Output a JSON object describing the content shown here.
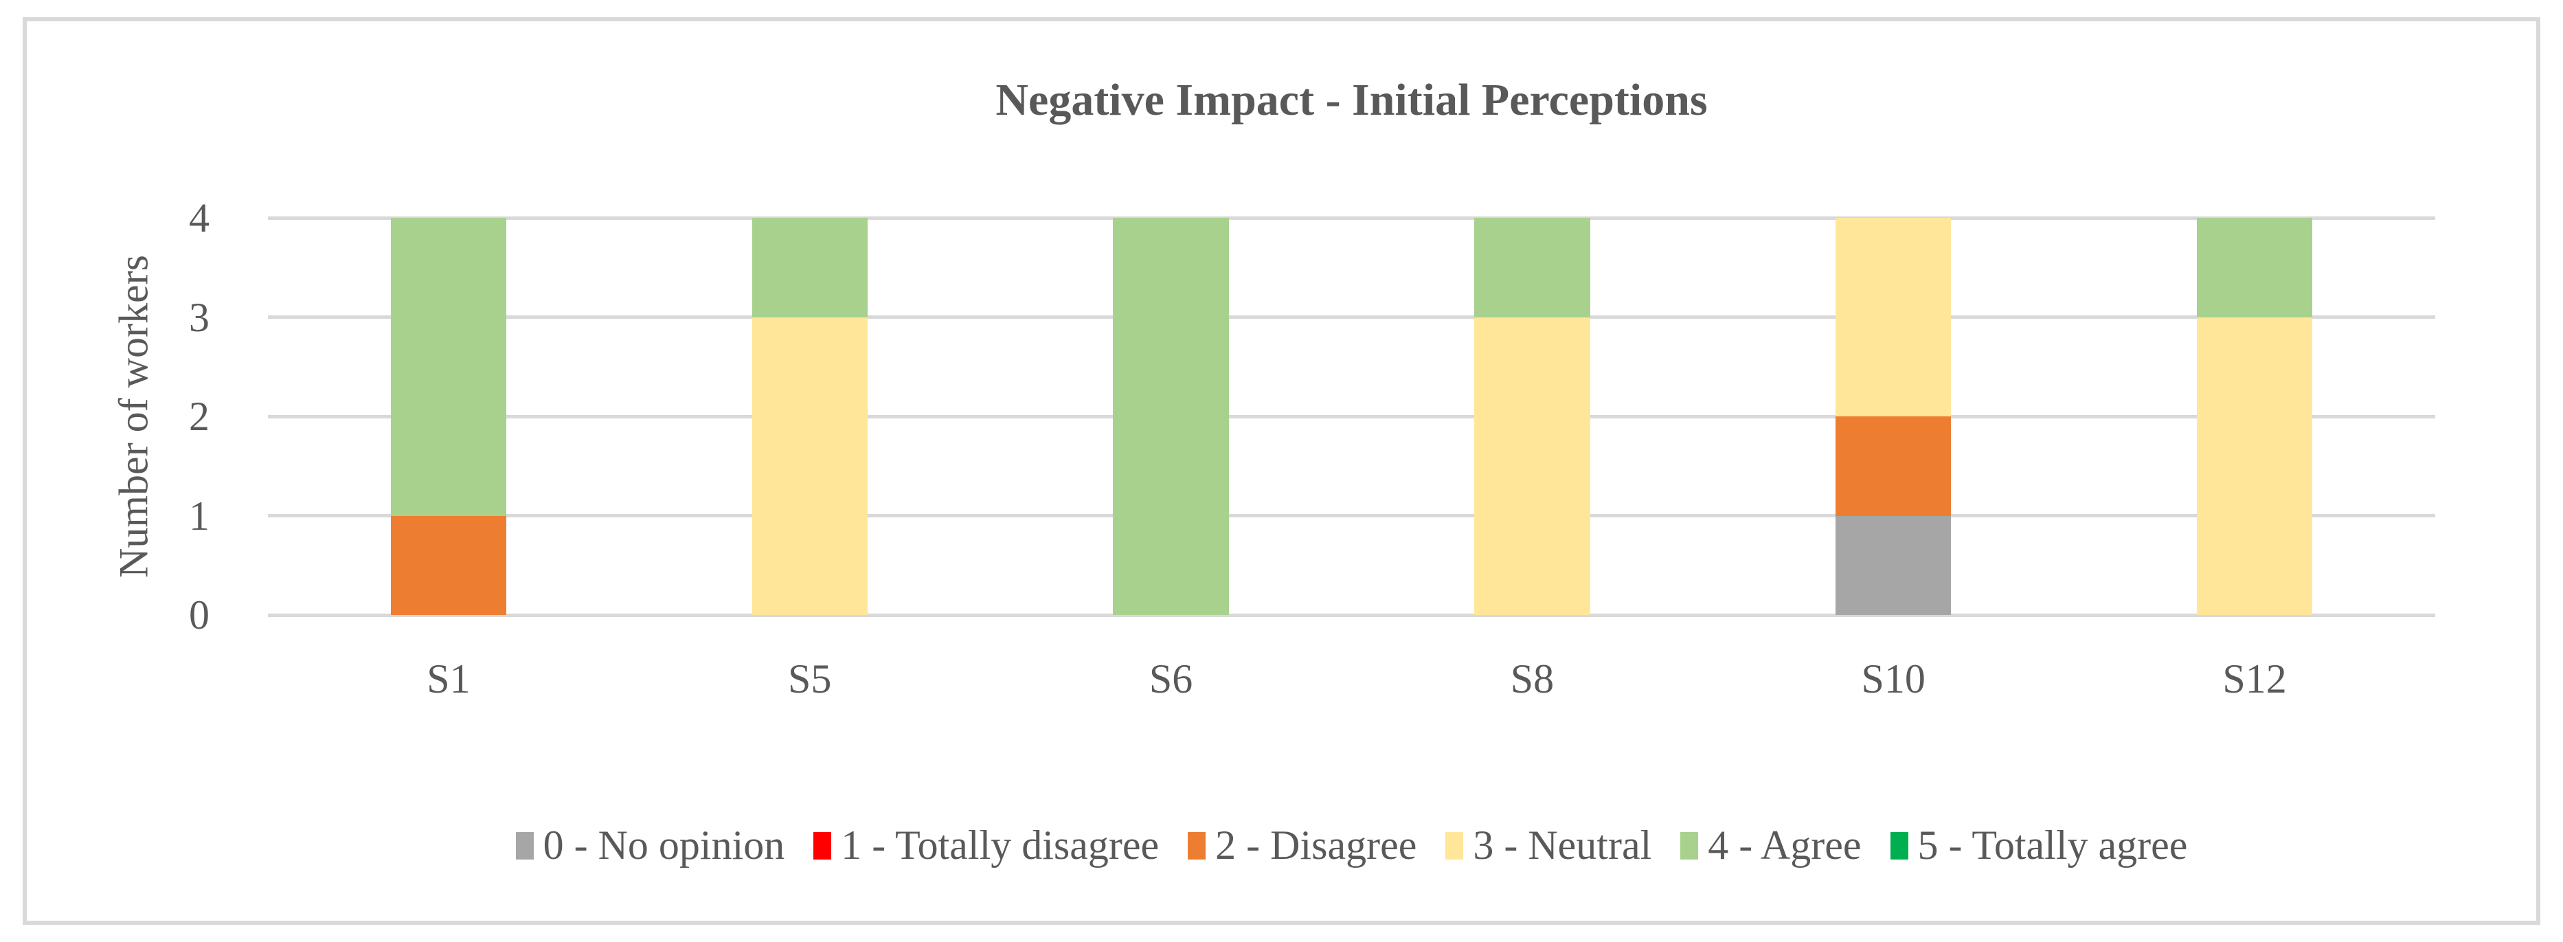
{
  "chart_data": {
    "type": "bar",
    "stacked": true,
    "title": "Negative Impact - Initial Perceptions",
    "xlabel": "",
    "ylabel": "Number of workers",
    "categories": [
      "S1",
      "S5",
      "S6",
      "S8",
      "S10",
      "S12"
    ],
    "series": [
      {
        "name": "0 - No opinion",
        "color": "#A6A6A6",
        "values": [
          0,
          0,
          0,
          0,
          1,
          0
        ]
      },
      {
        "name": "1 - Totally disagree",
        "color": "#FF0000",
        "values": [
          0,
          0,
          0,
          0,
          0,
          0
        ]
      },
      {
        "name": "2 - Disagree",
        "color": "#ED7D31",
        "values": [
          1,
          0,
          0,
          0,
          1,
          0
        ]
      },
      {
        "name": "3 - Neutral",
        "color": "#FFE699",
        "values": [
          0,
          3,
          0,
          3,
          2,
          3
        ]
      },
      {
        "name": "4 - Agree",
        "color": "#A9D18E",
        "values": [
          3,
          1,
          4,
          1,
          0,
          1
        ]
      },
      {
        "name": "5 - Totally agree",
        "color": "#00B050",
        "values": [
          0,
          0,
          0,
          0,
          0,
          0
        ]
      }
    ],
    "ylim": [
      0,
      4
    ],
    "yticks": [
      0,
      1,
      2,
      3,
      4
    ],
    "grid": true,
    "legend_position": "bottom"
  },
  "colors": {
    "text": "#595959",
    "gridline": "#D9D9D9",
    "chart_border": "#D9D9D9",
    "background": "#FFFFFF"
  }
}
